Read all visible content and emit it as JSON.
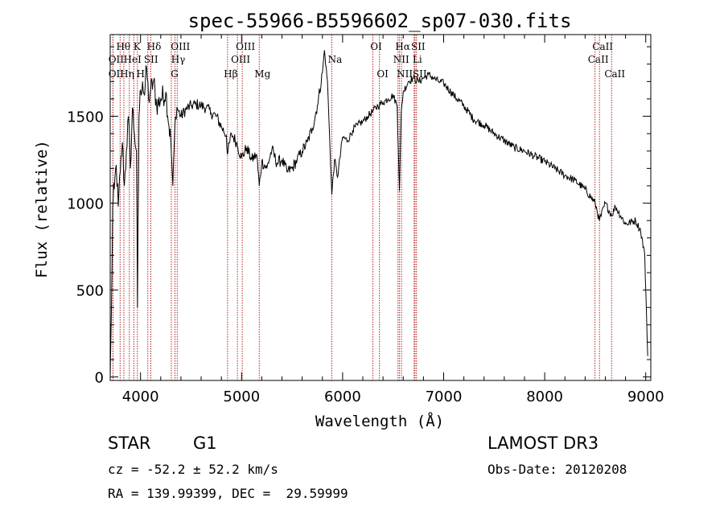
{
  "chart_data": {
    "type": "line",
    "title": "spec-55966-B5596602_sp07-030.fits",
    "xlabel": "Wavelength (Å)",
    "ylabel": "Flux (relative)",
    "xlim": [
      3700,
      9050
    ],
    "ylim": [
      -20,
      1970
    ],
    "xticks": [
      4000,
      5000,
      6000,
      7000,
      8000,
      9000
    ],
    "yticks": [
      0,
      500,
      1000,
      1500
    ],
    "series": [
      {
        "name": "flux",
        "x": [
          3700,
          3712,
          3725,
          3740,
          3760,
          3780,
          3800,
          3820,
          3840,
          3860,
          3880,
          3900,
          3920,
          3940,
          3960,
          3970,
          3985,
          4000,
          4020,
          4040,
          4060,
          4080,
          4100,
          4130,
          4160,
          4200,
          4250,
          4300,
          4320,
          4340,
          4360,
          4400,
          4450,
          4500,
          4550,
          4600,
          4650,
          4700,
          4750,
          4800,
          4850,
          4861,
          4900,
          4950,
          5000,
          5050,
          5100,
          5150,
          5175,
          5200,
          5250,
          5300,
          5350,
          5400,
          5450,
          5500,
          5550,
          5600,
          5650,
          5700,
          5750,
          5800,
          5820,
          5850,
          5870,
          5893,
          5920,
          5950,
          6000,
          6050,
          6100,
          6150,
          6200,
          6250,
          6300,
          6350,
          6400,
          6450,
          6500,
          6540,
          6563,
          6580,
          6600,
          6650,
          6700,
          6750,
          6800,
          6850,
          6900,
          6950,
          7000,
          7100,
          7200,
          7300,
          7400,
          7500,
          7600,
          7700,
          7800,
          7900,
          8000,
          8100,
          8200,
          8300,
          8400,
          8500,
          8542,
          8600,
          8662,
          8700,
          8800,
          8900,
          8950,
          8990,
          9020
        ],
        "values": [
          0,
          380,
          980,
          1080,
          1220,
          980,
          1180,
          1350,
          1100,
          1300,
          1500,
          1200,
          1550,
          1400,
          1300,
          400,
          1500,
          1650,
          1700,
          1620,
          1780,
          1600,
          1650,
          1700,
          1560,
          1600,
          1640,
          1350,
          1100,
          1450,
          1550,
          1500,
          1540,
          1560,
          1570,
          1560,
          1550,
          1520,
          1500,
          1440,
          1390,
          1280,
          1400,
          1350,
          1260,
          1320,
          1250,
          1280,
          1100,
          1240,
          1200,
          1310,
          1230,
          1250,
          1180,
          1200,
          1250,
          1300,
          1350,
          1430,
          1560,
          1750,
          1880,
          1700,
          1400,
          1050,
          1250,
          1150,
          1380,
          1360,
          1420,
          1450,
          1470,
          1500,
          1530,
          1560,
          1580,
          1600,
          1620,
          1560,
          1070,
          1520,
          1640,
          1700,
          1720,
          1700,
          1720,
          1740,
          1720,
          1700,
          1690,
          1620,
          1560,
          1480,
          1450,
          1400,
          1360,
          1320,
          1300,
          1270,
          1240,
          1200,
          1160,
          1130,
          1080,
          1000,
          900,
          1000,
          930,
          980,
          880,
          900,
          840,
          700,
          120
        ]
      }
    ],
    "line_markers": [
      {
        "label": "Hθ",
        "x": 3798,
        "row": 1
      },
      {
        "label": "OII",
        "x": 3727,
        "row": 2
      },
      {
        "label": "OII",
        "x": 3727,
        "row": 3
      },
      {
        "label": "HeI",
        "x": 3889,
        "row": 2
      },
      {
        "label": "Hη",
        "x": 3835,
        "row": 3
      },
      {
        "label": "K",
        "x": 3934,
        "row": 1
      },
      {
        "label": "H",
        "x": 3969,
        "row": 3
      },
      {
        "label": "SII",
        "x": 4072,
        "row": 2
      },
      {
        "label": "Hδ",
        "x": 4102,
        "row": 1
      },
      {
        "label": "OIII",
        "x": 4363,
        "row": 1
      },
      {
        "label": "Hγ",
        "x": 4341,
        "row": 2
      },
      {
        "label": "G",
        "x": 4305,
        "row": 3
      },
      {
        "label": "Hβ",
        "x": 4861,
        "row": 3
      },
      {
        "label": "OIII",
        "x": 4959,
        "row": 2
      },
      {
        "label": "OIII",
        "x": 5007,
        "row": 1
      },
      {
        "label": "Mg",
        "x": 5175,
        "row": 3
      },
      {
        "label": "Na",
        "x": 5893,
        "row": 2
      },
      {
        "label": "OI",
        "x": 6300,
        "row": 1
      },
      {
        "label": "OI",
        "x": 6364,
        "row": 3
      },
      {
        "label": "NII",
        "x": 6548,
        "row": 2
      },
      {
        "label": "NII",
        "x": 6583,
        "row": 3
      },
      {
        "label": "Hα",
        "x": 6563,
        "row": 1
      },
      {
        "label": "SII",
        "x": 6716,
        "row": 1
      },
      {
        "label": "SII",
        "x": 6731,
        "row": 3
      },
      {
        "label": "Li",
        "x": 6708,
        "row": 2
      },
      {
        "label": "CaII",
        "x": 8498,
        "row": 2
      },
      {
        "label": "CaII",
        "x": 8542,
        "row": 1
      },
      {
        "label": "CaII",
        "x": 8662,
        "row": 3
      }
    ],
    "colors": {
      "spectrum": "#000000",
      "markers": "#b22222",
      "axes": "#000000"
    }
  },
  "info": {
    "class_label": "STAR",
    "subclass": "G1",
    "survey": "LAMOST DR3",
    "cz": "cz = -52.2 ± 52.2 km/s",
    "obs_date": "Obs-Date: 20120208",
    "coords": "RA = 139.99399, DEC =  29.59999"
  }
}
